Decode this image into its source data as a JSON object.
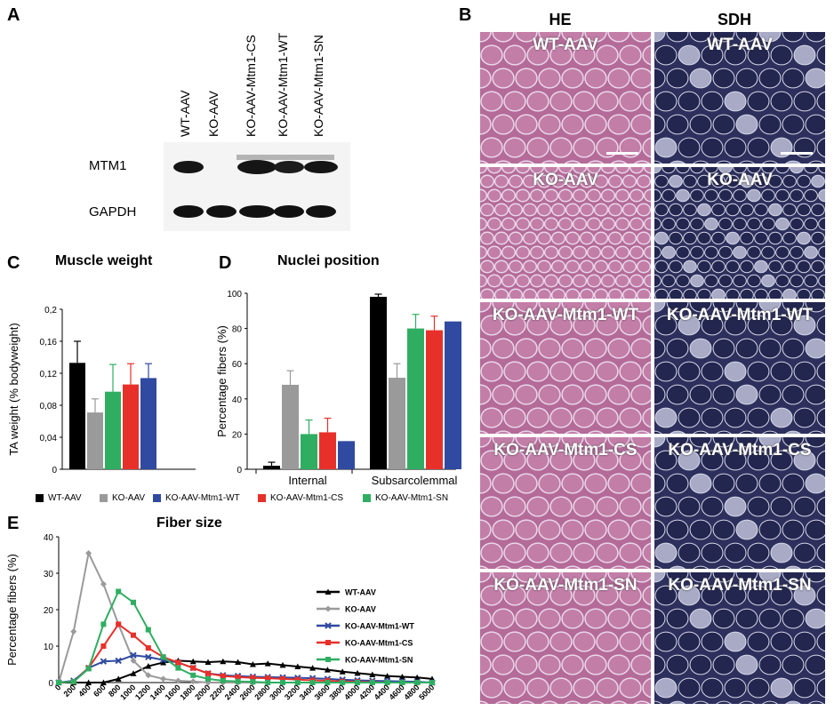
{
  "panels": {
    "A": "A",
    "B": "B",
    "C": "C",
    "D": "D",
    "E": "E"
  },
  "blot": {
    "lanes": [
      "WT-AAV",
      "KO-AAV",
      "KO-AAV-Mtm1-CS",
      "KO-AAV-Mtm1-WT",
      "KO-AAV-Mtm1-SN"
    ],
    "rows": [
      "MTM1",
      "GAPDH"
    ]
  },
  "histology": {
    "columns": [
      "HE",
      "SDH"
    ],
    "rows": [
      "WT-AAV",
      "KO-AAV",
      "KO-AAV-Mtm1-WT",
      "KO-AAV-Mtm1-CS",
      "KO-AAV-Mtm1-SN"
    ],
    "colors": {
      "he": "#b46b98",
      "sdh": "#2d2f5c"
    }
  },
  "legend_cd": [
    "WT-AAV",
    "KO-AAV",
    "KO-AAV-Mtm1-WT",
    "KO-AAV-Mtm1-CS",
    "KO-AAV-Mtm1-SN"
  ],
  "chart_data": [
    {
      "type": "bar",
      "title": "Muscle weight",
      "ylabel": "TA weight (% bodyweight)",
      "ylim": [
        0,
        0.2
      ],
      "yticks": [
        "0",
        "0,04",
        "0,08",
        "0,12",
        "0,16",
        "0,2"
      ],
      "series": [
        {
          "name": "WT-AAV",
          "value": 0.133,
          "err": 0.027,
          "color": "#000000"
        },
        {
          "name": "KO-AAV",
          "value": 0.071,
          "err": 0.017,
          "color": "#9a9a9a"
        },
        {
          "name": "KO-AAV-Mtm1-SN",
          "value": 0.097,
          "err": 0.034,
          "color": "#2fae62"
        },
        {
          "name": "KO-AAV-Mtm1-CS",
          "value": 0.106,
          "err": 0.026,
          "color": "#e8302a"
        },
        {
          "name": "KO-AAV-Mtm1-WT",
          "value": 0.114,
          "err": 0.018,
          "color": "#2f4aa0"
        }
      ]
    },
    {
      "type": "bar",
      "title": "Nuclei position",
      "ylabel": "Percentage fibers (%)",
      "ylim": [
        0,
        100
      ],
      "yticks": [
        "0",
        "20",
        "40",
        "60",
        "80",
        "100"
      ],
      "categories": [
        "Internal",
        "Subsarcolemmal"
      ],
      "series": [
        {
          "name": "WT-AAV",
          "values": [
            2,
            98
          ],
          "err": [
            2,
            1.5
          ],
          "color": "#000000"
        },
        {
          "name": "KO-AAV",
          "values": [
            48,
            52
          ],
          "err": [
            8,
            8
          ],
          "color": "#9a9a9a"
        },
        {
          "name": "KO-AAV-Mtm1-SN",
          "values": [
            20,
            80
          ],
          "err": [
            8,
            8
          ],
          "color": "#2fae62"
        },
        {
          "name": "KO-AAV-Mtm1-CS",
          "values": [
            21,
            79
          ],
          "err": [
            8,
            8
          ],
          "color": "#e8302a"
        },
        {
          "name": "KO-AAV-Mtm1-WT",
          "values": [
            16,
            84
          ],
          "err": [
            0,
            0
          ],
          "color": "#2f4aa0"
        }
      ]
    },
    {
      "type": "line",
      "title": "Fiber size",
      "ylabel": "Percentage fibers (%)",
      "ylim": [
        0,
        40
      ],
      "yticks": [
        "0",
        "10",
        "20",
        "30",
        "40"
      ],
      "x": [
        0,
        200,
        400,
        600,
        800,
        1000,
        1200,
        1400,
        1600,
        1800,
        2000,
        2200,
        2400,
        2600,
        2800,
        3000,
        3200,
        3400,
        3600,
        3800,
        4000,
        4200,
        4400,
        4600,
        4800,
        5000
      ],
      "series": [
        {
          "name": "WT-AAV",
          "color": "#000000",
          "values": [
            0,
            0,
            0,
            0,
            1,
            2.5,
            4.5,
            5.5,
            6,
            5.8,
            5.6,
            5.8,
            5.6,
            5,
            5.2,
            4.8,
            4.4,
            4,
            3.5,
            3,
            2.6,
            2.2,
            1.8,
            1.6,
            1.4,
            1
          ]
        },
        {
          "name": "KO-AAV",
          "color": "#9a9a9a",
          "values": [
            0,
            14,
            35.5,
            27,
            16,
            6,
            2,
            1,
            0.5,
            0.3,
            0,
            0,
            0,
            0,
            0,
            0,
            0,
            0,
            0,
            0,
            0,
            0,
            0,
            0,
            0,
            0
          ]
        },
        {
          "name": "KO-AAV-Mtm1-WT",
          "color": "#2f4aa0",
          "values": [
            0,
            0.5,
            4,
            5.8,
            6,
            7.5,
            7,
            6.2,
            5.5,
            4,
            2.5,
            2,
            1.8,
            1.6,
            1.5,
            1.4,
            1.3,
            1.2,
            1,
            0.8,
            0.6,
            0.5,
            0.4,
            0.3,
            0.2,
            0
          ]
        },
        {
          "name": "KO-AAV-Mtm1-CS",
          "color": "#e8302a",
          "values": [
            0,
            0.2,
            4,
            10,
            16,
            13,
            9.5,
            7,
            5.5,
            4,
            2.5,
            1.8,
            1.5,
            1.3,
            1.2,
            1,
            0.8,
            0.6,
            0.5,
            0.3,
            0.2,
            0.1,
            0,
            0,
            0,
            0
          ]
        },
        {
          "name": "KO-AAV-Mtm1-SN",
          "color": "#2fae62",
          "values": [
            0,
            0.2,
            3.8,
            16,
            25,
            22,
            14.5,
            7,
            4,
            2,
            1,
            0.5,
            0.3,
            0.2,
            0,
            0,
            0,
            0,
            0,
            0,
            0,
            0,
            0,
            0,
            0,
            0
          ]
        }
      ]
    }
  ]
}
